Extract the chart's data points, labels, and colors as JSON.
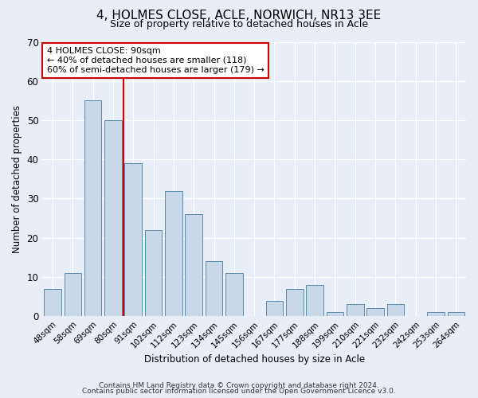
{
  "title": "4, HOLMES CLOSE, ACLE, NORWICH, NR13 3EE",
  "subtitle": "Size of property relative to detached houses in Acle",
  "xlabel": "Distribution of detached houses by size in Acle",
  "ylabel": "Number of detached properties",
  "bar_labels": [
    "48sqm",
    "58sqm",
    "69sqm",
    "80sqm",
    "91sqm",
    "102sqm",
    "112sqm",
    "123sqm",
    "134sqm",
    "145sqm",
    "156sqm",
    "167sqm",
    "177sqm",
    "188sqm",
    "199sqm",
    "210sqm",
    "221sqm",
    "232sqm",
    "242sqm",
    "253sqm",
    "264sqm"
  ],
  "bar_values": [
    7,
    11,
    55,
    50,
    39,
    22,
    32,
    26,
    14,
    11,
    0,
    4,
    7,
    8,
    1,
    3,
    2,
    3,
    0,
    1,
    1
  ],
  "bar_color": "#c8d8e8",
  "bar_edge_color": "#5a8ab0",
  "vline_color": "#cc0000",
  "vline_x": 3.5,
  "ylim": [
    0,
    70
  ],
  "yticks": [
    0,
    10,
    20,
    30,
    40,
    50,
    60,
    70
  ],
  "annotation_box_text": "4 HOLMES CLOSE: 90sqm\n← 40% of detached houses are smaller (118)\n60% of semi-detached houses are larger (179) →",
  "annotation_box_color": "#cc0000",
  "annotation_box_facecolor": "white",
  "footer_line1": "Contains HM Land Registry data © Crown copyright and database right 2024.",
  "footer_line2": "Contains public sector information licensed under the Open Government Licence v3.0.",
  "background_color": "#e8eef8",
  "grid_color": "white",
  "title_fontsize": 11,
  "subtitle_fontsize": 9,
  "axis_label_fontsize": 8.5,
  "tick_label_fontsize": 7.5,
  "ytick_label_fontsize": 8.5,
  "footer_fontsize": 6.5
}
